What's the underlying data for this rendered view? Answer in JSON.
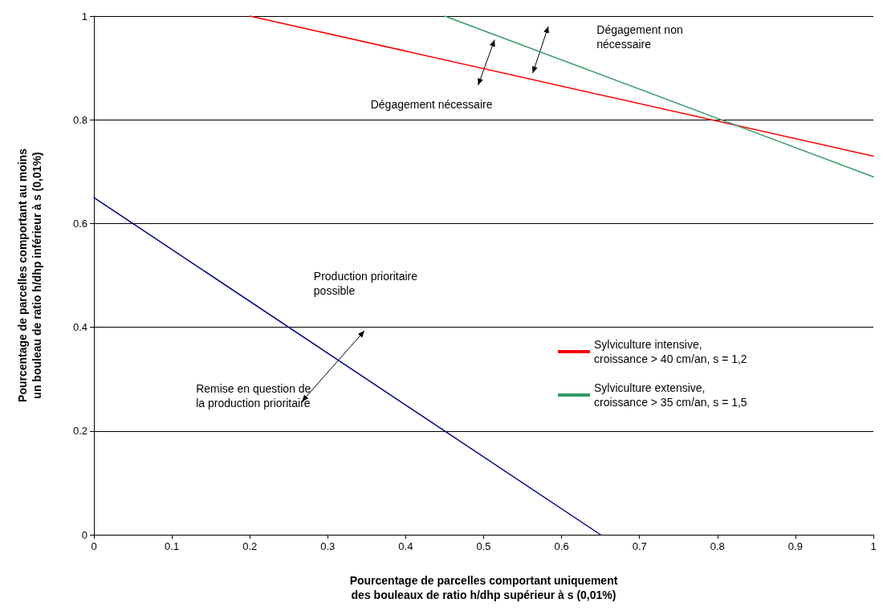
{
  "chart_data": {
    "type": "line",
    "xlabel": "Pourcentage de parcelles comportant uniquement\ndes bouleaux de ratio h/dhp supérieur à s (0,01%)",
    "ylabel": "Pourcentage de parcelles comportant au moins\nun bouleau de ratio h/dhp inférieur à s (0,01%)",
    "series": [
      {
        "name": "Sylviculture intensive,\ncroissance > 40 cm/an, s = 1,2",
        "color": "#ff0000",
        "x": [
          0.2,
          1
        ],
        "values": [
          1,
          0.73
        ]
      },
      {
        "name": "Sylviculture extensive,\ncroissance > 35 cm/an, s = 1,5",
        "color": "#339966",
        "x": [
          0.45,
          1
        ],
        "values": [
          1,
          0.69
        ]
      },
      {
        "color": "#000080",
        "x": [
          0,
          0.65
        ],
        "values": [
          0.65,
          0
        ]
      }
    ],
    "xlim": [
      0,
      1
    ],
    "xticks": [
      0,
      0.1,
      0.2,
      0.3,
      0.4,
      0.5,
      0.6,
      0.7,
      0.8,
      0.9,
      1
    ],
    "ylim": [
      0,
      1
    ],
    "yticks": [
      0,
      0.2,
      0.4,
      0.6,
      0.8,
      1
    ],
    "grid": "y",
    "legend": "right",
    "marker": "none",
    "line_style": "solid",
    "annotations": [
      "Dégagement non\nnécessaire",
      "Dégagement nécessaire",
      "Production prioritaire\npossible",
      "Remise en question de\nla production prioritaire"
    ]
  }
}
